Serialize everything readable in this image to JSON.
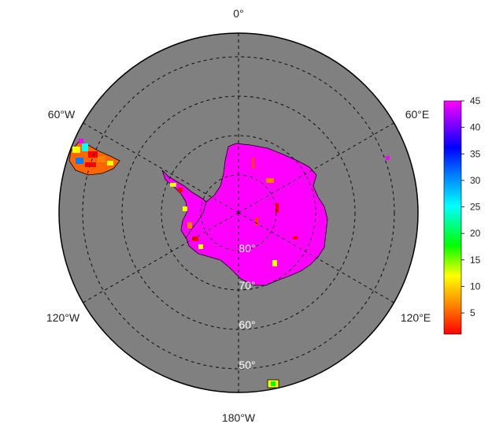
{
  "map": {
    "projection": "south polar stereographic",
    "ocean_color": "#808080",
    "land_color": "#ff00ff",
    "longitude_labels": [
      {
        "text": "0°",
        "lon": 0
      },
      {
        "text": "60°E",
        "lon": 60
      },
      {
        "text": "120°E",
        "lon": 120
      },
      {
        "text": "180°W",
        "lon": 180
      },
      {
        "text": "120°W",
        "lon": -120
      },
      {
        "text": "60°W",
        "lon": -60
      }
    ],
    "latitude_labels": [
      {
        "text": "80°",
        "lat": -80
      },
      {
        "text": "70°",
        "lat": -70
      },
      {
        "text": "60°",
        "lat": -60
      },
      {
        "text": "50°",
        "lat": -50
      }
    ]
  },
  "colorbar": {
    "min": 1,
    "max": 45,
    "ticks": [
      "45",
      "40",
      "35",
      "30",
      "25",
      "20",
      "15",
      "10",
      "5"
    ],
    "colors": [
      "#ff0000",
      "#ff8000",
      "#ffff00",
      "#00ff00",
      "#00ffff",
      "#0080ff",
      "#0000ff",
      "#8000ff",
      "#ff00ff"
    ]
  }
}
